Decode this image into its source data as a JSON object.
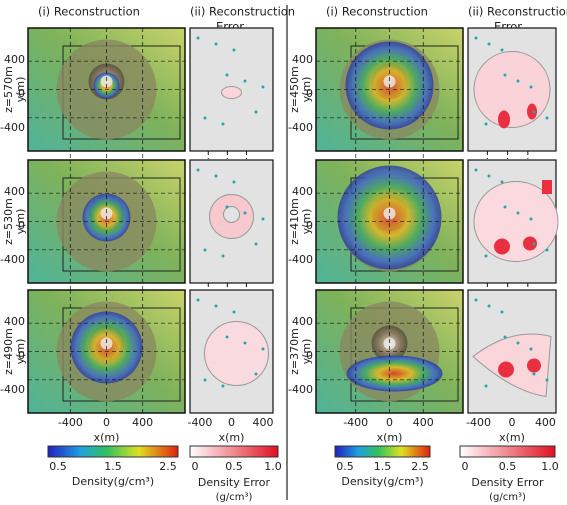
{
  "groups": [
    {
      "recon_title": "(i) Reconstruction",
      "error_title": "(ii) Reconstruction",
      "error_title_2": "Error",
      "rows": [
        "z=570m",
        "z=530m",
        "z=490m"
      ],
      "y_label": "y(m)",
      "yticks": [
        "400",
        "0",
        "-400"
      ],
      "xticks": [
        "-400",
        "0",
        "400"
      ],
      "x_label": "x(m)",
      "density_bar": {
        "ticks": [
          "0.5",
          "1.5",
          "2.5"
        ],
        "label": "Density(g/cm³)"
      },
      "error_bar": {
        "ticks": [
          "0",
          "0.5",
          "1.0"
        ],
        "label": "Density Error",
        "unit": "(g/cm³)"
      }
    },
    {
      "recon_title": "(i) Reconstruction",
      "error_title": "(ii) Reconstruction",
      "error_title_2": "Error",
      "rows": [
        "z=450m",
        "z=410m",
        "z=370m"
      ],
      "y_label": "y(m)",
      "yticks": [
        "400",
        "0",
        "-400"
      ],
      "xticks": [
        "-400",
        "0",
        "400"
      ],
      "x_label": "x(m)",
      "density_bar": {
        "ticks": [
          "0.5",
          "1.5",
          "2.5"
        ],
        "label": "Density(g/cm³)"
      },
      "error_bar": {
        "ticks": [
          "0",
          "0.5",
          "1.0"
        ],
        "label": "Density Error",
        "unit": "(g/cm³)"
      }
    }
  ]
}
